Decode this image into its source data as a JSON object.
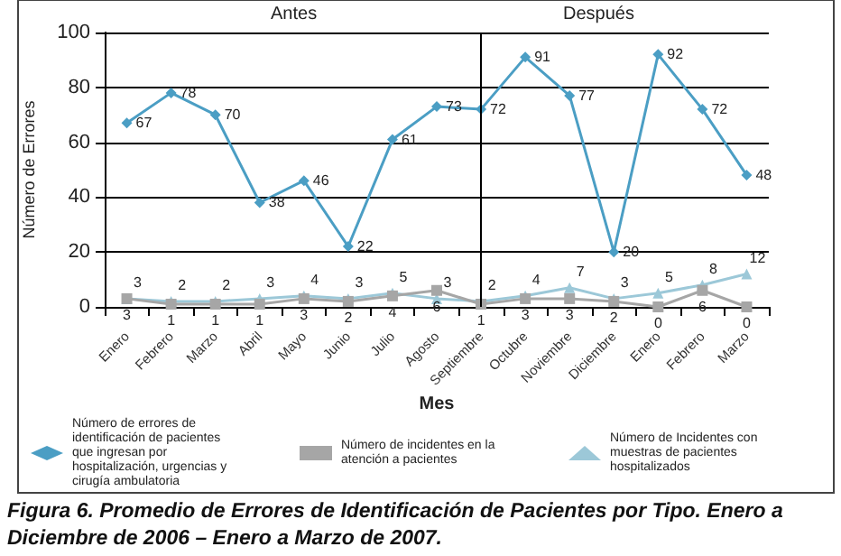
{
  "chart_data": {
    "type": "line",
    "title": "Figura 6. Promedio de Errores de Identificación de Pacientes por Tipo. Enero a Diciembre de 2006 – Enero a Marzo de 2007.",
    "xlabel": "Mes",
    "ylabel": "Número de Errores",
    "annotations": [
      "Antes",
      "Después"
    ],
    "categories": [
      "Enero",
      "Febrero",
      "Marzo",
      "Abril",
      "Mayo",
      "Junio",
      "Julio",
      "Agosto",
      "Septiembre",
      "Octubre",
      "Noviembre",
      "Diciembre",
      "Enero",
      "Febrero",
      "Marzo"
    ],
    "series": [
      {
        "name": "Número de errores de identificación de pacientes que ingresan por hospitalización, urgencias y cirugía ambulatoria",
        "color": "#4b9ec4",
        "marker": "diamond",
        "values": [
          67,
          78,
          70,
          38,
          46,
          22,
          61,
          73,
          72,
          91,
          77,
          20,
          92,
          72,
          48
        ]
      },
      {
        "name": "Número de incidentes en la atención a pacientes",
        "color": "#a6a6a6",
        "marker": "square",
        "values": [
          3,
          1,
          1,
          1,
          3,
          2,
          4,
          6,
          1,
          3,
          3,
          2,
          0,
          6,
          0
        ]
      },
      {
        "name": "Número de Incidentes con muestras de pacientes hospitalizados",
        "color": "#9cc8d8",
        "marker": "triangle",
        "values": [
          3,
          2,
          2,
          3,
          4,
          3,
          5,
          3,
          2,
          4,
          7,
          3,
          5,
          8,
          12
        ]
      }
    ],
    "ylim": [
      0,
      100
    ],
    "yticks": [
      0,
      20,
      40,
      60,
      80,
      100
    ],
    "grid": "y",
    "legend": "bottom",
    "data_labels": true,
    "ref_lines": [
      {
        "axis": "x",
        "value": "Septiembre",
        "color": "#000000"
      }
    ]
  }
}
